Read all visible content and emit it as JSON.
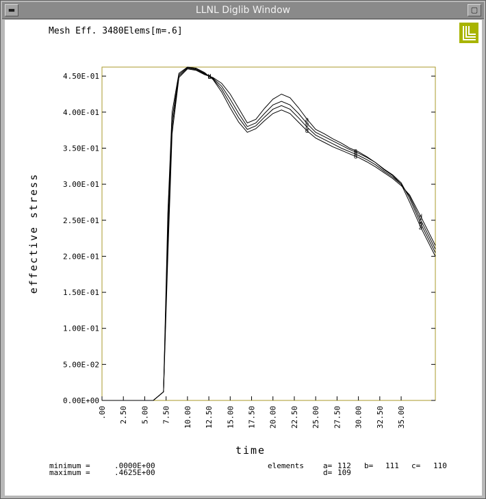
{
  "window": {
    "title": "LLNL Diglib Window",
    "menu_icon": "window-menu-icon",
    "maximize_icon": "maximize-icon"
  },
  "plot": {
    "header": "Mesh Eff. 3480Elems[m=.6]",
    "logo_icon": "llnl-logo-icon",
    "min_label": "minimum =",
    "min_value": ".0000E+00",
    "max_label": "maximum =",
    "max_value": ".4625E+00",
    "elements_label": "elements",
    "elements": [
      {
        "key": "a=",
        "value": "112"
      },
      {
        "key": "b=",
        "value": "111"
      },
      {
        "key": "c=",
        "value": "110"
      },
      {
        "key": "d=",
        "value": "109"
      }
    ]
  },
  "colors": {
    "frame": "#a89a2a",
    "line": "#000000",
    "logo": "#a8b400"
  },
  "chart_data": {
    "type": "line",
    "title": "",
    "xlabel": "time",
    "ylabel": "effective stress",
    "xlim": [
      0,
      39
    ],
    "ylim": [
      0,
      0.4625
    ],
    "xticks": [
      0,
      2.5,
      5,
      7.5,
      10,
      12.5,
      15,
      17.5,
      20,
      22.5,
      25,
      27.5,
      30,
      32.5,
      35
    ],
    "xtick_labels": [
      ".00",
      "2.50",
      "5.00",
      "7.50",
      "10.00",
      "12.50",
      "15.00",
      "17.50",
      "20.00",
      "22.50",
      "25.00",
      "27.50",
      "30.00",
      "32.50",
      "35.00"
    ],
    "yticks": [
      0,
      0.05,
      0.1,
      0.15,
      0.2,
      0.25,
      0.3,
      0.35,
      0.4,
      0.45
    ],
    "ytick_labels": [
      "0.00E+00",
      "5.00E-02",
      "1.00E-01",
      "1.50E-01",
      "2.00E-01",
      "2.50E-01",
      "3.00E-01",
      "3.50E-01",
      "4.00E-01",
      "4.50E-01"
    ],
    "grid": false,
    "series": [
      {
        "name": "a",
        "label_x": [
          12.6,
          24.0,
          29.7,
          37.3
        ],
        "x": [
          0,
          6.0,
          6.6,
          7.2,
          7.7,
          8.2,
          9.0,
          10.0,
          11.0,
          12.0,
          13.0,
          14.0,
          15.0,
          16.0,
          17.0,
          18.0,
          19.0,
          20.0,
          21.0,
          22.0,
          23.0,
          24.0,
          25.0,
          26.0,
          27.0,
          28.0,
          29.0,
          30.0,
          31.0,
          32.0,
          33.0,
          34.0,
          35.0,
          36.0,
          37.3,
          39.0
        ],
        "y": [
          0,
          0,
          0.006,
          0.012,
          0.2,
          0.37,
          0.448,
          0.46,
          0.458,
          0.452,
          0.448,
          0.44,
          0.425,
          0.405,
          0.385,
          0.39,
          0.405,
          0.418,
          0.425,
          0.42,
          0.406,
          0.39,
          0.376,
          0.37,
          0.363,
          0.357,
          0.35,
          0.345,
          0.338,
          0.33,
          0.32,
          0.312,
          0.3,
          0.275,
          0.24,
          0.2
        ]
      },
      {
        "name": "b",
        "label_x": [
          12.6,
          24.0,
          29.7,
          37.3
        ],
        "x": [
          0,
          6.0,
          6.6,
          7.2,
          7.7,
          8.2,
          9.0,
          10.0,
          11.0,
          12.0,
          13.0,
          14.0,
          15.0,
          16.0,
          17.0,
          18.0,
          19.0,
          20.0,
          21.0,
          22.0,
          23.0,
          24.0,
          25.0,
          26.0,
          27.0,
          28.0,
          29.0,
          30.0,
          31.0,
          32.0,
          33.0,
          34.0,
          35.0,
          36.0,
          37.3,
          39.0
        ],
        "y": [
          0,
          0,
          0.006,
          0.012,
          0.22,
          0.38,
          0.45,
          0.461,
          0.459,
          0.453,
          0.447,
          0.436,
          0.418,
          0.398,
          0.38,
          0.385,
          0.398,
          0.41,
          0.415,
          0.41,
          0.398,
          0.384,
          0.372,
          0.366,
          0.36,
          0.354,
          0.348,
          0.343,
          0.337,
          0.33,
          0.321,
          0.313,
          0.302,
          0.28,
          0.245,
          0.205
        ]
      },
      {
        "name": "c",
        "label_x": [
          12.6,
          24.0,
          29.7,
          37.3
        ],
        "x": [
          0,
          6.0,
          6.6,
          7.2,
          7.7,
          8.2,
          9.0,
          10.0,
          11.0,
          12.0,
          13.0,
          14.0,
          15.0,
          16.0,
          17.0,
          18.0,
          19.0,
          20.0,
          21.0,
          22.0,
          23.0,
          24.0,
          25.0,
          26.0,
          27.0,
          28.0,
          29.0,
          30.0,
          31.0,
          32.0,
          33.0,
          34.0,
          35.0,
          36.0,
          37.3,
          39.0
        ],
        "y": [
          0,
          0,
          0.006,
          0.012,
          0.24,
          0.39,
          0.452,
          0.462,
          0.46,
          0.454,
          0.446,
          0.432,
          0.412,
          0.392,
          0.376,
          0.381,
          0.393,
          0.404,
          0.409,
          0.404,
          0.392,
          0.379,
          0.368,
          0.362,
          0.356,
          0.35,
          0.345,
          0.34,
          0.334,
          0.327,
          0.318,
          0.31,
          0.3,
          0.283,
          0.25,
          0.21
        ]
      },
      {
        "name": "d",
        "label_x": [
          12.6,
          24.0,
          29.7,
          37.3
        ],
        "x": [
          0,
          6.0,
          6.6,
          7.2,
          7.7,
          8.2,
          9.0,
          10.0,
          11.0,
          12.0,
          13.0,
          14.0,
          15.0,
          16.0,
          17.0,
          18.0,
          19.0,
          20.0,
          21.0,
          22.0,
          23.0,
          24.0,
          25.0,
          26.0,
          27.0,
          28.0,
          29.0,
          30.0,
          31.0,
          32.0,
          33.0,
          34.0,
          35.0,
          36.0,
          37.3,
          39.0
        ],
        "y": [
          0,
          0,
          0.006,
          0.012,
          0.26,
          0.4,
          0.454,
          0.4625,
          0.461,
          0.455,
          0.445,
          0.428,
          0.406,
          0.386,
          0.372,
          0.377,
          0.388,
          0.398,
          0.403,
          0.398,
          0.386,
          0.374,
          0.364,
          0.358,
          0.352,
          0.347,
          0.342,
          0.337,
          0.331,
          0.324,
          0.316,
          0.308,
          0.298,
          0.285,
          0.255,
          0.215
        ]
      }
    ]
  }
}
